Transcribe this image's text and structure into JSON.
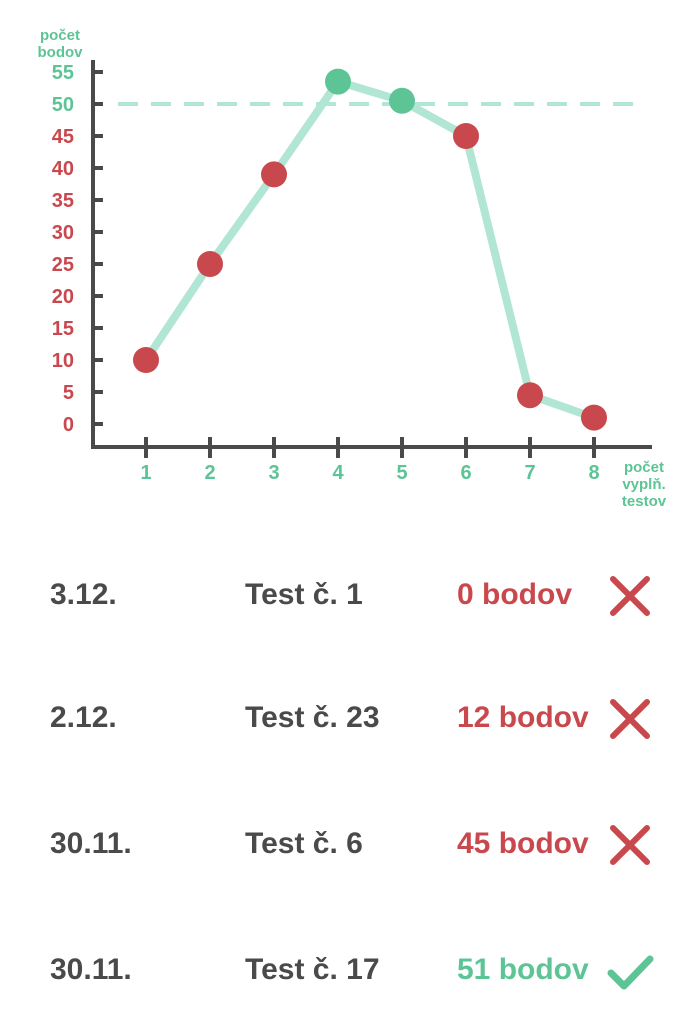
{
  "colors": {
    "pass": "#5cc495",
    "fail": "#c9484d",
    "line": "#b2e6d4",
    "axis": "#4a4a4a",
    "text": "#4a4a4a"
  },
  "chart_data": {
    "type": "line",
    "ylabel": "počet bodov",
    "xlabel": "počet vyplň. testov",
    "x": [
      1,
      2,
      3,
      4,
      5,
      6,
      7,
      8
    ],
    "y_ticks": [
      0,
      5,
      10,
      15,
      20,
      25,
      30,
      35,
      40,
      45,
      50,
      55
    ],
    "x_ticks": [
      1,
      2,
      3,
      4,
      5,
      6,
      7,
      8
    ],
    "series": [
      {
        "values": [
          10,
          25,
          39,
          53.5,
          50.5,
          45,
          4.5,
          1
        ]
      }
    ],
    "threshold": 50,
    "ylim": [
      0,
      55
    ],
    "xlim": [
      1,
      8
    ],
    "grid": false
  },
  "results": [
    {
      "date": "3.12.",
      "test": "Test č. 1",
      "score": "0 bodov",
      "passed": false,
      "icon": "cross-icon"
    },
    {
      "date": "2.12.",
      "test": "Test č. 23",
      "score": "12 bodov",
      "passed": false,
      "icon": "cross-icon"
    },
    {
      "date": "30.11.",
      "test": "Test č. 6",
      "score": "45 bodov",
      "passed": false,
      "icon": "cross-icon"
    },
    {
      "date": "30.11.",
      "test": "Test č. 17",
      "score": "51 bodov",
      "passed": true,
      "icon": "check-icon"
    }
  ]
}
